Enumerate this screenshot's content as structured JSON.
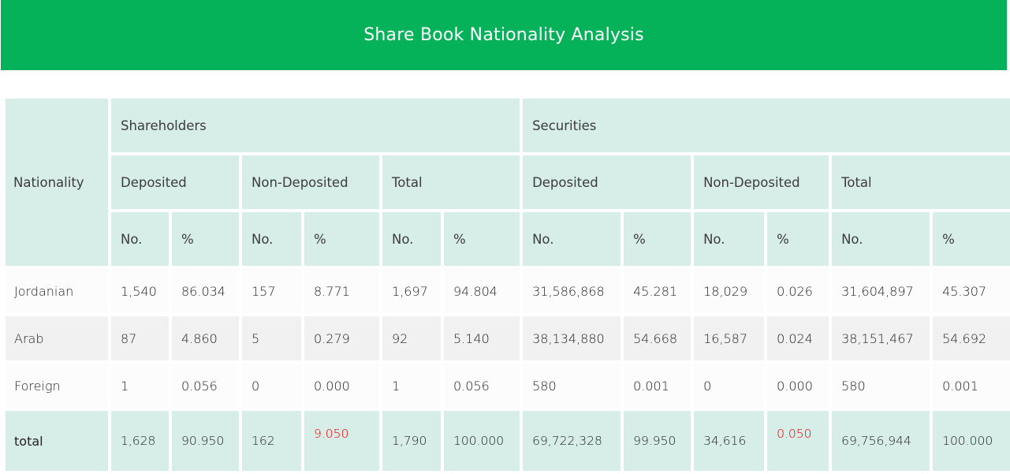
{
  "header": {
    "title": "Share Book Nationality Analysis"
  },
  "columns": {
    "nationality": "Nationality",
    "groups": {
      "shareholders": "Shareholders",
      "securities": "Securities"
    },
    "subgroups": {
      "deposited": "Deposited",
      "non_deposited": "Non-Deposited",
      "total": "Total"
    },
    "no": "No.",
    "pct": "%"
  },
  "rows": [
    {
      "name": "Jordanian",
      "values": [
        "1,540",
        "86.034",
        "157",
        "8.771",
        "1,697",
        "94.804",
        "31,586,868",
        "45.281",
        "18,029",
        "0.026",
        "31,604,897",
        "45.307"
      ]
    },
    {
      "name": "Arab",
      "values": [
        "87",
        "4.860",
        "5",
        "0.279",
        "92",
        "5.140",
        "38,134,880",
        "54.668",
        "16,587",
        "0.024",
        "38,151,467",
        "54.692"
      ]
    },
    {
      "name": "Foreign",
      "values": [
        "1",
        "0.056",
        "0",
        "0.000",
        "1",
        "0.056",
        "580",
        "0.001",
        "0",
        "0.000",
        "580",
        "0.001"
      ]
    }
  ],
  "total_row": {
    "name": "total",
    "values": [
      "1,628",
      "90.950",
      "162",
      "9.050",
      "1,790",
      "100.000",
      "69,722,328",
      "99.950",
      "34,616",
      "0.050",
      "69,756,944",
      "100.000"
    ]
  },
  "colors": {
    "banner": "#05b25a",
    "header_cell": "#d7ede7",
    "highlight": "#ee0000"
  }
}
